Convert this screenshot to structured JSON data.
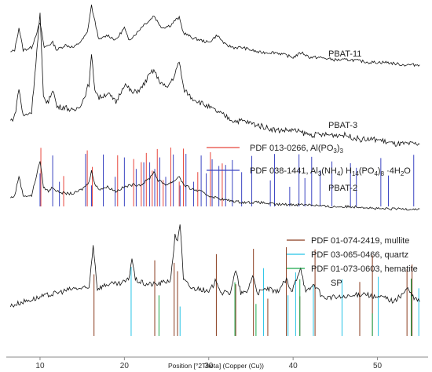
{
  "chart_data": {
    "type": "line",
    "title": "",
    "xlabel": "Position [°2Theta] (Copper (Cu))",
    "ylabel": "",
    "xlim": [
      6,
      56
    ],
    "x_ticks": [
      10,
      20,
      30,
      40,
      50
    ],
    "grid": false,
    "series": [
      {
        "name": "PBAT-11",
        "color": "#111111",
        "points": [
          [
            6.5,
            0.05
          ],
          [
            7.0,
            0.1
          ],
          [
            7.5,
            0.55
          ],
          [
            8.0,
            0.1
          ],
          [
            9.0,
            0.15
          ],
          [
            10.0,
            0.65
          ],
          [
            10.5,
            0.15
          ],
          [
            11.5,
            0.25
          ],
          [
            12.0,
            0.1
          ],
          [
            13.0,
            0.2
          ],
          [
            14.0,
            0.15
          ],
          [
            15.0,
            0.3
          ],
          [
            15.6,
            0.45
          ],
          [
            16.1,
            1.0
          ],
          [
            16.4,
            0.75
          ],
          [
            17.0,
            0.3
          ],
          [
            18.0,
            0.4
          ],
          [
            19.0,
            0.3
          ],
          [
            20.0,
            0.55
          ],
          [
            20.5,
            0.3
          ],
          [
            21.5,
            0.45
          ],
          [
            22.2,
            0.6
          ],
          [
            23.0,
            0.7
          ],
          [
            23.5,
            0.8
          ],
          [
            24.0,
            0.65
          ],
          [
            24.5,
            0.55
          ],
          [
            25.5,
            0.6
          ],
          [
            26.0,
            0.7
          ],
          [
            26.5,
            0.75
          ],
          [
            27.0,
            0.45
          ],
          [
            28.0,
            0.35
          ],
          [
            29.0,
            0.3
          ],
          [
            30.0,
            0.25
          ],
          [
            31.0,
            0.4
          ],
          [
            32.0,
            0.2
          ],
          [
            33.0,
            0.15
          ],
          [
            34.0,
            0.15
          ],
          [
            35.0,
            0.1
          ],
          [
            36.0,
            0.05
          ],
          [
            37.0,
            0.05
          ],
          [
            38.0,
            0.05
          ],
          [
            39.0,
            0.0
          ],
          [
            40.0,
            -0.05
          ],
          [
            41.0,
            0.05
          ],
          [
            42.0,
            -0.05
          ],
          [
            43.0,
            -0.05
          ],
          [
            45.0,
            -0.1
          ],
          [
            47.0,
            -0.1
          ],
          [
            49.0,
            -0.15
          ],
          [
            51.0,
            -0.15
          ],
          [
            53.0,
            -0.2
          ],
          [
            55.0,
            -0.2
          ]
        ]
      },
      {
        "name": "PBAT-3",
        "color": "#111111",
        "points": [
          [
            6.5,
            0.05
          ],
          [
            7.0,
            0.1
          ],
          [
            7.5,
            0.4
          ],
          [
            8.0,
            0.1
          ],
          [
            9.0,
            0.15
          ],
          [
            10.0,
            1.2
          ],
          [
            10.4,
            0.3
          ],
          [
            11.0,
            0.25
          ],
          [
            11.5,
            0.4
          ],
          [
            12.0,
            0.2
          ],
          [
            13.0,
            0.2
          ],
          [
            14.0,
            0.15
          ],
          [
            15.0,
            0.25
          ],
          [
            15.8,
            0.45
          ],
          [
            16.1,
            0.75
          ],
          [
            16.5,
            0.4
          ],
          [
            17.0,
            0.3
          ],
          [
            18.0,
            0.35
          ],
          [
            19.0,
            0.25
          ],
          [
            20.0,
            0.45
          ],
          [
            21.0,
            0.35
          ],
          [
            22.0,
            0.4
          ],
          [
            23.0,
            0.55
          ],
          [
            23.5,
            0.6
          ],
          [
            24.0,
            0.5
          ],
          [
            25.0,
            0.4
          ],
          [
            26.0,
            0.55
          ],
          [
            26.5,
            0.7
          ],
          [
            27.0,
            0.4
          ],
          [
            28.0,
            0.3
          ],
          [
            29.0,
            0.25
          ],
          [
            30.0,
            0.2
          ],
          [
            31.0,
            0.15
          ],
          [
            32.0,
            0.1
          ],
          [
            33.0,
            0.05
          ],
          [
            34.0,
            0.05
          ],
          [
            36.0,
            0.0
          ],
          [
            38.0,
            -0.05
          ],
          [
            40.0,
            -0.05
          ],
          [
            42.0,
            -0.1
          ],
          [
            44.0,
            -0.1
          ],
          [
            46.0,
            -0.1
          ],
          [
            48.0,
            -0.15
          ],
          [
            50.0,
            -0.15
          ],
          [
            52.0,
            -0.2
          ],
          [
            55.0,
            -0.2
          ]
        ]
      },
      {
        "name": "PBAT-2",
        "color": "#111111",
        "points": [
          [
            6.5,
            0.05
          ],
          [
            7.0,
            0.1
          ],
          [
            7.5,
            0.55
          ],
          [
            8.0,
            0.1
          ],
          [
            9.0,
            0.1
          ],
          [
            10.0,
            0.9
          ],
          [
            10.4,
            0.3
          ],
          [
            11.0,
            0.2
          ],
          [
            11.5,
            0.3
          ],
          [
            12.0,
            0.2
          ],
          [
            13.0,
            0.15
          ],
          [
            14.0,
            0.15
          ],
          [
            15.0,
            0.25
          ],
          [
            15.8,
            0.4
          ],
          [
            16.1,
            0.7
          ],
          [
            16.5,
            0.35
          ],
          [
            17.0,
            0.25
          ],
          [
            18.0,
            0.3
          ],
          [
            19.0,
            0.2
          ],
          [
            20.0,
            0.3
          ],
          [
            21.0,
            0.35
          ],
          [
            22.0,
            0.35
          ],
          [
            23.0,
            0.5
          ],
          [
            23.5,
            0.65
          ],
          [
            24.0,
            0.45
          ],
          [
            25.0,
            0.35
          ],
          [
            26.0,
            0.45
          ],
          [
            26.5,
            0.55
          ],
          [
            27.0,
            0.35
          ],
          [
            28.0,
            0.25
          ],
          [
            29.0,
            0.2
          ],
          [
            30.0,
            0.1
          ],
          [
            31.0,
            0.05
          ],
          [
            32.0,
            0.0
          ],
          [
            34.0,
            -0.05
          ],
          [
            36.0,
            -0.05
          ],
          [
            38.0,
            -0.1
          ],
          [
            40.0,
            -0.1
          ],
          [
            42.0,
            -0.1
          ],
          [
            44.0,
            -0.15
          ],
          [
            46.0,
            -0.15
          ],
          [
            48.0,
            -0.15
          ],
          [
            50.0,
            -0.2
          ],
          [
            52.0,
            -0.2
          ],
          [
            55.0,
            -0.2
          ]
        ]
      },
      {
        "name": "SP",
        "color": "#111111",
        "points": [
          [
            6.5,
            0.0
          ],
          [
            8.0,
            0.05
          ],
          [
            10.0,
            0.1
          ],
          [
            12.0,
            0.15
          ],
          [
            14.0,
            0.2
          ],
          [
            15.8,
            0.2
          ],
          [
            16.3,
            0.7
          ],
          [
            16.8,
            0.2
          ],
          [
            18.0,
            0.25
          ],
          [
            19.5,
            0.25
          ],
          [
            20.5,
            0.3
          ],
          [
            20.9,
            0.55
          ],
          [
            21.3,
            0.3
          ],
          [
            22.5,
            0.25
          ],
          [
            24.0,
            0.25
          ],
          [
            25.5,
            0.3
          ],
          [
            26.0,
            0.8
          ],
          [
            26.3,
            0.75
          ],
          [
            26.6,
            0.95
          ],
          [
            27.0,
            0.3
          ],
          [
            28.0,
            0.2
          ],
          [
            29.0,
            0.2
          ],
          [
            30.0,
            0.15
          ],
          [
            30.9,
            0.3
          ],
          [
            31.5,
            0.15
          ],
          [
            32.5,
            0.15
          ],
          [
            33.2,
            0.4
          ],
          [
            33.8,
            0.15
          ],
          [
            34.5,
            0.15
          ],
          [
            35.2,
            0.35
          ],
          [
            35.8,
            0.15
          ],
          [
            37.0,
            0.2
          ],
          [
            38.0,
            0.15
          ],
          [
            39.2,
            0.3
          ],
          [
            39.8,
            0.15
          ],
          [
            40.9,
            0.45
          ],
          [
            41.5,
            0.15
          ],
          [
            42.5,
            0.25
          ],
          [
            43.5,
            0.1
          ],
          [
            45.0,
            0.1
          ],
          [
            46.5,
            0.1
          ],
          [
            48.5,
            0.15
          ],
          [
            49.5,
            0.1
          ],
          [
            50.8,
            0.1
          ],
          [
            52.0,
            0.05
          ],
          [
            53.6,
            0.2
          ],
          [
            54.2,
            0.1
          ],
          [
            55.0,
            0.05
          ]
        ]
      }
    ],
    "sample_labels": [
      "PBAT-11",
      "PBAT-3",
      "PBAT-2",
      "SP"
    ],
    "references": [
      {
        "name": "PDF 013-0266, Al(PO3)3",
        "color": "#e8463c",
        "positions": [
          10.1,
          12.8,
          15.6,
          16.2,
          19.2,
          21.1,
          22.0,
          22.6,
          23.3,
          23.9,
          24.6,
          25.5,
          26.5,
          27.0,
          28.7,
          30.2,
          31.6
        ]
      },
      {
        "name": "PDF 038-1441, Al3(NH4)H14(PO4)8·4H2O",
        "color": "#3b45c2",
        "positions": [
          10.0,
          11.5,
          12.3,
          15.4,
          16.1,
          17.5,
          18.9,
          20.0,
          21.4,
          22.3,
          23.0,
          23.6,
          24.2,
          24.9,
          25.8,
          26.6,
          27.3,
          28.2,
          29.1,
          29.7,
          30.4,
          31.2,
          32.0,
          32.8,
          33.9,
          35.1,
          37.3,
          37.8,
          39.6,
          40.7,
          41.4,
          42.2,
          43.2,
          44.6,
          46.8,
          47.5,
          50.4,
          51.3,
          54.3
        ]
      },
      {
        "name": "PDF 01-074-2419, mullite",
        "color": "#8a3b1e",
        "positions": [
          16.4,
          23.6,
          25.9,
          26.3,
          30.9,
          33.2,
          35.3,
          37.0,
          39.2,
          40.8,
          42.6,
          47.9,
          49.4,
          53.5,
          54.1
        ]
      },
      {
        "name": "PDF 03-065-0466, quartz",
        "color": "#25c3e6",
        "positions": [
          20.8,
          26.6,
          36.5,
          39.4,
          40.3,
          42.4,
          45.8,
          50.1,
          54.9
        ]
      },
      {
        "name": "PDF 01-073-0603, hematite",
        "color": "#1aa84a",
        "positions": [
          24.1,
          33.1,
          35.6,
          40.8,
          49.4,
          54.0
        ]
      }
    ],
    "legend_groups": [
      {
        "entries": [
          {
            "label": "PDF 013-0266, Al(PO",
            "sub1": "3",
            "mid": ")",
            "sub2": "3",
            "tail": "",
            "color": "#e8463c"
          },
          {
            "label": "PDF 038-1441, Al",
            "sub1": "3",
            "mid": "(NH",
            "sub2": "4",
            "tail": ") H",
            "sub3": "14",
            "tail2": "(PO",
            "sub4": "4",
            "tail3": ")",
            "sub5": "8",
            "tail4": " ·4H",
            "sub6": "2",
            "tail5": "O",
            "color": "#3b45c2"
          }
        ],
        "position": "middle-right"
      },
      {
        "entries": [
          {
            "label": "PDF 01-074-2419, mullite",
            "color": "#8a3b1e"
          },
          {
            "label": "PDF 03-065-0466, quartz",
            "color": "#25c3e6"
          },
          {
            "label": "PDF 01-073-0603, hematite",
            "color": "#1aa84a"
          }
        ],
        "position": "bottom-right"
      }
    ]
  }
}
